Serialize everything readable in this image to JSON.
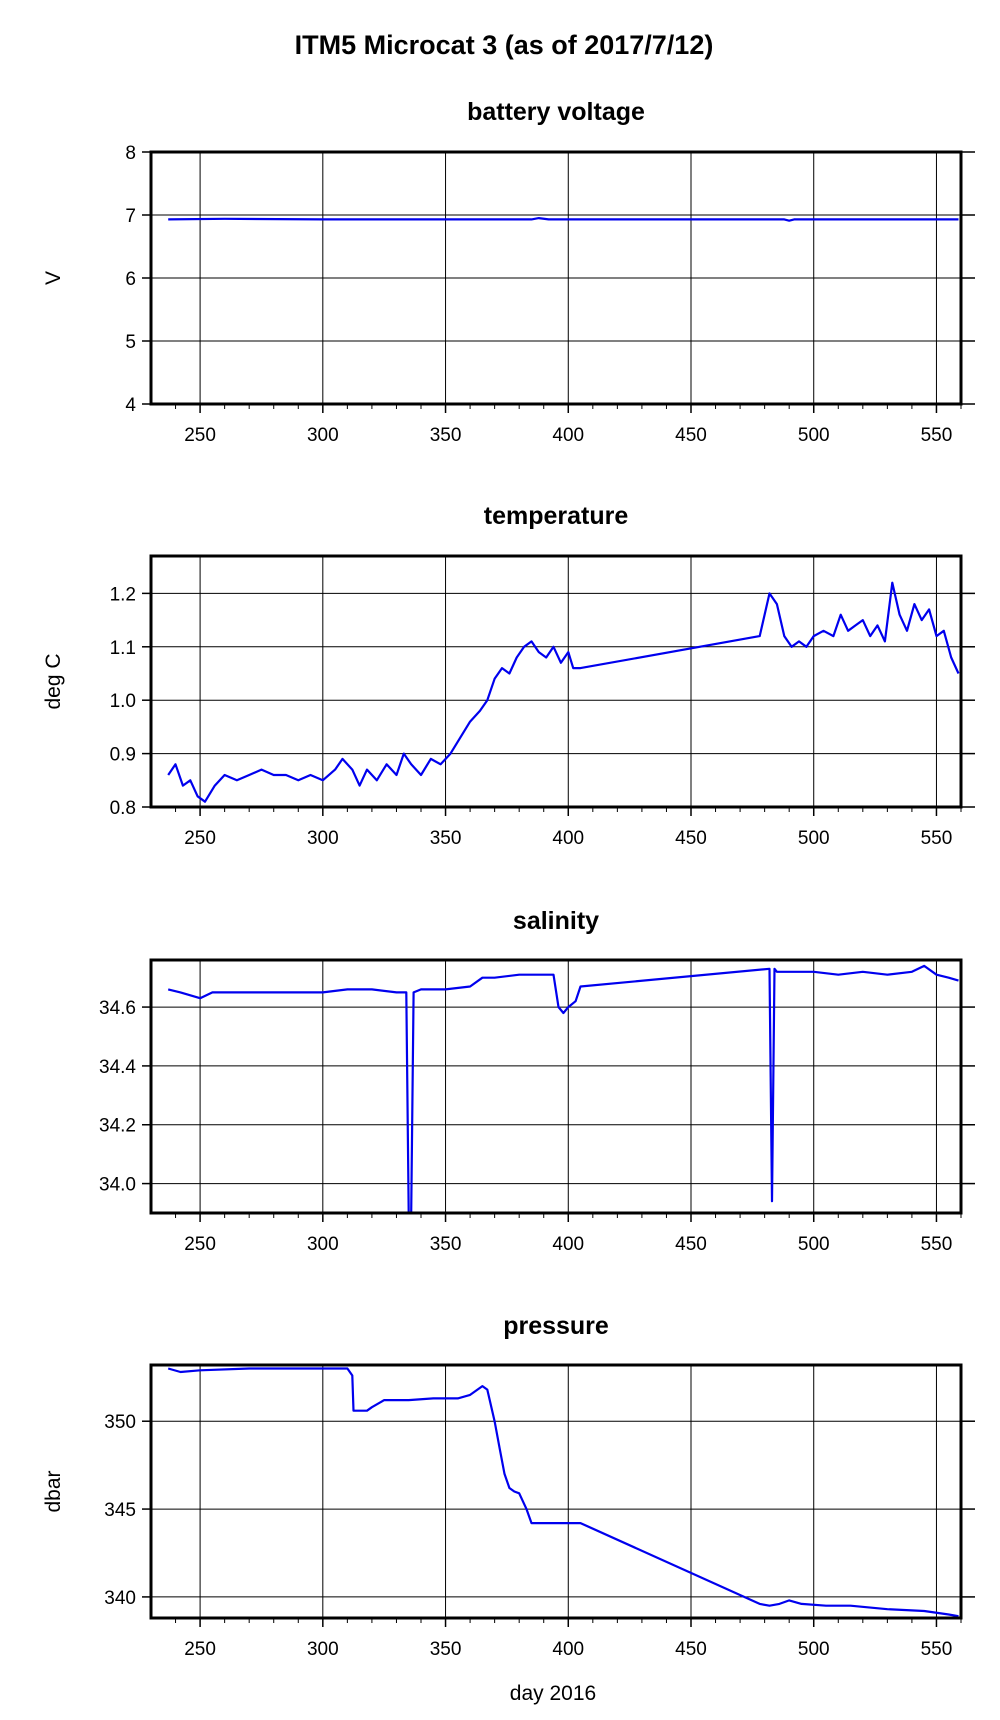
{
  "page_title": "ITM5 Microcat 3 (as of 2017/7/12)",
  "xlabel": "day 2016",
  "colors": {
    "series": "#0000ee",
    "grid": "#000000",
    "frame": "#000000"
  },
  "chart_data": [
    {
      "type": "line",
      "title": "battery voltage",
      "ylabel": "V",
      "xlim": [
        230,
        560
      ],
      "ylim": [
        4,
        8
      ],
      "xticks": [
        250,
        300,
        350,
        400,
        450,
        500,
        550
      ],
      "yticks": [
        4,
        5,
        6,
        7,
        8
      ],
      "yticklabels": [
        "4",
        "5",
        "6",
        "7",
        "8"
      ],
      "series": [
        {
          "x": [
            237,
            260,
            300,
            350,
            385,
            388,
            392,
            420,
            460,
            488,
            490,
            492,
            520,
            559
          ],
          "y": [
            6.93,
            6.94,
            6.93,
            6.93,
            6.93,
            6.95,
            6.93,
            6.93,
            6.93,
            6.93,
            6.91,
            6.93,
            6.93,
            6.93
          ]
        }
      ]
    },
    {
      "type": "line",
      "title": "temperature",
      "ylabel": "deg C",
      "xlim": [
        230,
        560
      ],
      "ylim": [
        0.8,
        1.27
      ],
      "xticks": [
        250,
        300,
        350,
        400,
        450,
        500,
        550
      ],
      "yticks": [
        0.8,
        0.9,
        1.0,
        1.1,
        1.2
      ],
      "yticklabels": [
        "0.8",
        "0.9",
        "1.0",
        "1.1",
        "1.2"
      ],
      "series": [
        {
          "x": [
            237,
            240,
            243,
            246,
            249,
            252,
            256,
            260,
            265,
            270,
            275,
            280,
            285,
            290,
            295,
            300,
            305,
            308,
            312,
            315,
            318,
            322,
            326,
            330,
            333,
            336,
            340,
            344,
            348,
            352,
            356,
            360,
            364,
            367,
            370,
            373,
            376,
            379,
            382,
            385,
            388,
            391,
            394,
            397,
            400,
            402,
            405,
            478,
            480,
            482,
            485,
            488,
            491,
            494,
            497,
            500,
            504,
            508,
            511,
            514,
            517,
            520,
            523,
            526,
            529,
            532,
            535,
            538,
            541,
            544,
            547,
            550,
            553,
            556,
            559
          ],
          "y": [
            0.86,
            0.88,
            0.84,
            0.85,
            0.82,
            0.81,
            0.84,
            0.86,
            0.85,
            0.86,
            0.87,
            0.86,
            0.86,
            0.85,
            0.86,
            0.85,
            0.87,
            0.89,
            0.87,
            0.84,
            0.87,
            0.85,
            0.88,
            0.86,
            0.9,
            0.88,
            0.86,
            0.89,
            0.88,
            0.9,
            0.93,
            0.96,
            0.98,
            1.0,
            1.04,
            1.06,
            1.05,
            1.08,
            1.1,
            1.11,
            1.09,
            1.08,
            1.1,
            1.07,
            1.09,
            1.06,
            1.06,
            1.12,
            1.16,
            1.2,
            1.18,
            1.12,
            1.1,
            1.11,
            1.1,
            1.12,
            1.13,
            1.12,
            1.16,
            1.13,
            1.14,
            1.15,
            1.12,
            1.14,
            1.11,
            1.22,
            1.16,
            1.13,
            1.18,
            1.15,
            1.17,
            1.12,
            1.13,
            1.08,
            1.05
          ]
        }
      ]
    },
    {
      "type": "line",
      "title": "salinity",
      "ylabel": "",
      "xlim": [
        230,
        560
      ],
      "ylim": [
        33.9,
        34.76
      ],
      "xticks": [
        250,
        300,
        350,
        400,
        450,
        500,
        550
      ],
      "yticks": [
        34.0,
        34.2,
        34.4,
        34.6
      ],
      "yticklabels": [
        "34.0",
        "34.2",
        "34.4",
        "34.6"
      ],
      "series": [
        {
          "x": [
            237,
            242,
            246,
            250,
            255,
            262,
            270,
            280,
            290,
            300,
            310,
            320,
            330,
            334,
            335,
            336,
            337,
            340,
            350,
            360,
            365,
            370,
            380,
            390,
            394,
            396,
            398,
            400,
            403,
            405,
            482,
            483,
            484,
            485,
            490,
            500,
            510,
            520,
            530,
            540,
            545,
            550,
            555,
            559
          ],
          "y": [
            34.66,
            34.65,
            34.64,
            34.63,
            34.65,
            34.65,
            34.65,
            34.65,
            34.65,
            34.65,
            34.66,
            34.66,
            34.65,
            34.65,
            33.9,
            33.9,
            34.65,
            34.66,
            34.66,
            34.67,
            34.7,
            34.7,
            34.71,
            34.71,
            34.71,
            34.6,
            34.58,
            34.6,
            34.62,
            34.67,
            34.73,
            33.94,
            34.73,
            34.72,
            34.72,
            34.72,
            34.71,
            34.72,
            34.71,
            34.72,
            34.74,
            34.71,
            34.7,
            34.69
          ]
        }
      ]
    },
    {
      "type": "line",
      "title": "pressure",
      "ylabel": "dbar",
      "xlim": [
        230,
        560
      ],
      "ylim": [
        338.8,
        353.2
      ],
      "xticks": [
        250,
        300,
        350,
        400,
        450,
        500,
        550
      ],
      "yticks": [
        340,
        345,
        350
      ],
      "yticklabels": [
        "340",
        "345",
        "350"
      ],
      "series": [
        {
          "x": [
            237,
            242,
            250,
            270,
            290,
            305,
            310,
            312,
            312.5,
            318,
            320,
            325,
            335,
            345,
            355,
            360,
            365,
            367,
            370,
            372,
            374,
            376,
            378,
            380,
            383,
            385,
            388,
            395,
            403,
            405,
            478,
            482,
            486,
            490,
            495,
            505,
            515,
            530,
            545,
            555,
            559
          ],
          "y": [
            353.0,
            352.8,
            352.9,
            353.0,
            353.0,
            353.0,
            353.0,
            352.6,
            350.6,
            350.6,
            350.8,
            351.2,
            351.2,
            351.3,
            351.3,
            351.5,
            352.0,
            351.8,
            350.0,
            348.5,
            347.0,
            346.2,
            346.0,
            345.9,
            345.0,
            344.2,
            344.2,
            344.2,
            344.2,
            344.2,
            339.6,
            339.5,
            339.6,
            339.8,
            339.6,
            339.5,
            339.5,
            339.3,
            339.2,
            339.0,
            338.9
          ]
        }
      ]
    }
  ]
}
